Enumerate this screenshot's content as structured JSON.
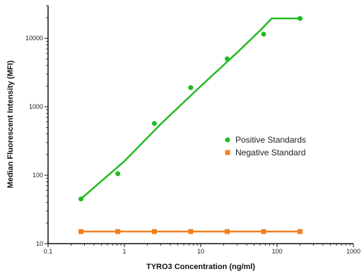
{
  "chart_data": {
    "type": "scatter",
    "title": "",
    "xlabel": "TYRO3 Concentration (ng/ml)",
    "ylabel": "Median Fluorescent Intensity (MFI)",
    "xscale": "log",
    "yscale": "log",
    "xlim": [
      0.1,
      1000
    ],
    "ylim": [
      10,
      30000
    ],
    "x_ticks": [
      0.1,
      1,
      10,
      100,
      1000
    ],
    "x_tick_labels": [
      "0.1",
      "1",
      "10",
      "100",
      "1000"
    ],
    "y_ticks": [
      10,
      100,
      1000,
      10000
    ],
    "y_tick_labels": [
      "10",
      "100",
      "1000",
      "10000"
    ],
    "grid": false,
    "legend_position": "right-middle",
    "series": [
      {
        "name": "Positive Standards",
        "color": "#22bb22",
        "marker": "circle",
        "x": [
          0.27,
          0.82,
          2.47,
          7.4,
          22.2,
          66.7,
          200
        ],
        "y": [
          45,
          105,
          570,
          1900,
          5000,
          11500,
          19500
        ],
        "fit_curve": {
          "x": [
            0.27,
            0.5,
            1,
            3,
            10,
            30,
            60,
            85,
            200
          ],
          "y": [
            45,
            82,
            160,
            560,
            2000,
            6200,
            13000,
            19500,
            19500
          ]
        }
      },
      {
        "name": "Negative Standard",
        "color": "#f08020",
        "marker": "square",
        "x": [
          0.27,
          0.82,
          2.47,
          7.4,
          22.2,
          66.7,
          200
        ],
        "y": [
          15,
          15,
          15,
          15,
          15,
          15,
          15
        ],
        "fit_curve": {
          "x": [
            0.27,
            200
          ],
          "y": [
            15,
            15
          ]
        }
      }
    ]
  }
}
